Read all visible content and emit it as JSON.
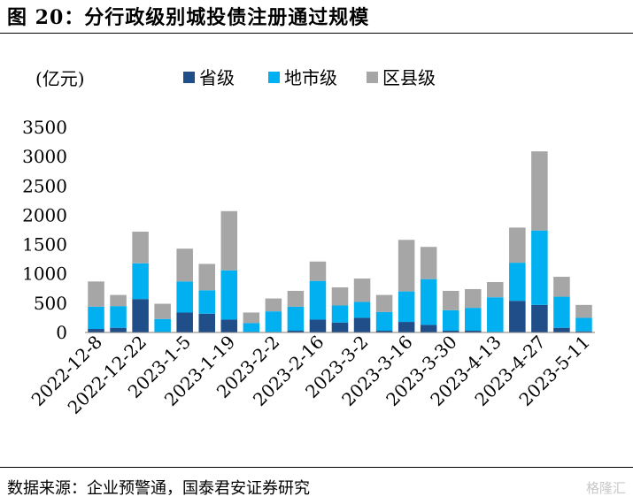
{
  "figure": {
    "title": "图 20：分行政级别城投债注册通过规模",
    "source": "数据来源：企业预警通，国泰君安证券研究",
    "watermark": "格隆汇"
  },
  "colors": {
    "province": "#1f4e89",
    "city": "#00b0f0",
    "district": "#a6a6a6"
  },
  "chart_data": {
    "type": "bar",
    "stacked": true,
    "unit_label": "(亿元)",
    "categories": [
      "2022-12-8",
      "2022-12-15",
      "2022-12-22",
      "2022-12-29",
      "2023-1-5",
      "2023-1-12",
      "2023-1-19",
      "2023-1-26",
      "2023-2-2",
      "2023-2-9",
      "2023-2-16",
      "2023-2-23",
      "2023-3-2",
      "2023-3-9",
      "2023-3-16",
      "2023-3-23",
      "2023-3-30",
      "2023-4-6",
      "2023-4-13",
      "2023-4-20",
      "2023-4-27",
      "2023-5-4",
      "2023-5-11"
    ],
    "tick_labels": [
      "2022-12-8",
      "2022-12-22",
      "2023-1-5",
      "2023-1-19",
      "2023-2-2",
      "2023-2-16",
      "2023-3-2",
      "2023-3-16",
      "2023-3-30",
      "2023-4-13",
      "2023-4-27",
      "2023-5-11"
    ],
    "series": [
      {
        "name": "省级",
        "color_key": "province",
        "values": [
          60,
          80,
          570,
          10,
          340,
          320,
          220,
          10,
          10,
          30,
          220,
          170,
          250,
          30,
          180,
          130,
          30,
          30,
          10,
          540,
          470,
          80,
          20
        ]
      },
      {
        "name": "地市级",
        "color_key": "city",
        "values": [
          380,
          370,
          610,
          220,
          530,
          400,
          840,
          150,
          350,
          410,
          660,
          290,
          270,
          320,
          520,
          780,
          350,
          390,
          590,
          650,
          1270,
          530,
          230
        ]
      },
      {
        "name": "区县级",
        "color_key": "district",
        "values": [
          430,
          190,
          540,
          260,
          560,
          450,
          1010,
          180,
          220,
          270,
          330,
          310,
          400,
          290,
          880,
          550,
          330,
          320,
          260,
          600,
          1350,
          340,
          220
        ]
      }
    ],
    "ylim": [
      0,
      3500
    ],
    "yticks": [
      0,
      500,
      1000,
      1500,
      2000,
      2500,
      3000,
      3500
    ],
    "legend_position": "top",
    "grid": false
  }
}
